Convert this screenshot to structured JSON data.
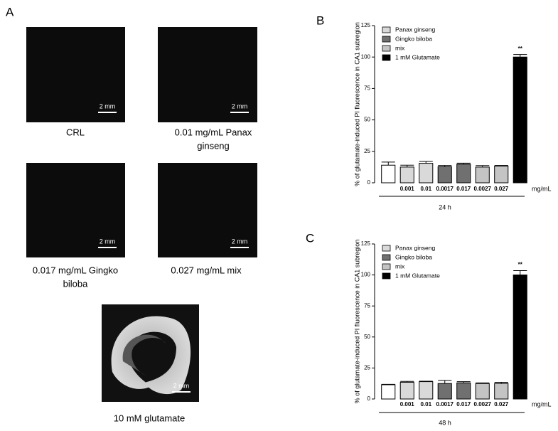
{
  "panel_a": {
    "letter": "A",
    "images": [
      {
        "caption": [
          "CRL"
        ],
        "scale": "2 mm"
      },
      {
        "caption": [
          "0.01 mg/mL Panax",
          "ginseng"
        ],
        "scale": "2 mm"
      },
      {
        "caption": [
          "0.017 mg/mL Gingko",
          "biloba"
        ],
        "scale": "2 mm"
      },
      {
        "caption": [
          "0.027 mg/mL mix"
        ],
        "scale": "2 mm"
      },
      {
        "caption": [
          "10 mM glutamate"
        ],
        "scale": "2 mm"
      }
    ]
  },
  "chart_data": [
    {
      "type": "bar",
      "letter": "B",
      "ylabel": "% of glutamate-induced PI fluorescence in CA1 subregion",
      "xlabel": "24 h",
      "unit": "mg/mL",
      "categories": [
        null,
        "0.001",
        "0.01",
        "0.0017",
        "0.017",
        "0.0027",
        "0.027",
        null
      ],
      "series": [
        {
          "color": "#ffffff",
          "values": [
            14,
            null,
            null,
            null,
            null,
            null,
            null,
            null
          ],
          "errors": [
            2.5,
            null,
            null,
            null,
            null,
            null,
            null,
            null
          ]
        },
        {
          "name": "Panax ginseng",
          "color": "#d9d9d9",
          "values": [
            null,
            12.5,
            15.5,
            null,
            null,
            null,
            null,
            null
          ],
          "errors": [
            null,
            1.5,
            1.5,
            null,
            null,
            null,
            null,
            null
          ]
        },
        {
          "name": "Gingko biloba",
          "color": "#707070",
          "values": [
            null,
            null,
            null,
            12.8,
            14.8,
            null,
            null,
            null
          ],
          "errors": [
            null,
            null,
            null,
            1,
            0.8,
            null,
            null,
            null
          ]
        },
        {
          "name": "mix",
          "color": "#c4c4c4",
          "values": [
            null,
            null,
            null,
            null,
            null,
            12.5,
            13.3,
            null
          ],
          "errors": [
            null,
            null,
            null,
            null,
            null,
            1.2,
            0.5,
            null
          ]
        },
        {
          "name": "1 mM Glutamate",
          "color": "#000000",
          "values": [
            null,
            null,
            null,
            null,
            null,
            null,
            null,
            100
          ],
          "errors": [
            null,
            null,
            null,
            null,
            null,
            null,
            null,
            2
          ]
        }
      ],
      "significance": [
        null,
        null,
        null,
        null,
        null,
        null,
        null,
        "**"
      ],
      "ylim": [
        0,
        125
      ],
      "yticks": [
        0,
        25,
        50,
        75,
        100,
        125
      ]
    },
    {
      "type": "bar",
      "letter": "C",
      "ylabel": "% of glutamate-induced PI fluorescence in CA1 subregion",
      "xlabel": "48 h",
      "unit": "mg/mL",
      "categories": [
        null,
        "0.001",
        "0.01",
        "0.0017",
        "0.017",
        "0.0027",
        "0.027",
        null
      ],
      "series": [
        {
          "color": "#ffffff",
          "values": [
            11.5,
            null,
            null,
            null,
            null,
            null,
            null,
            null
          ],
          "errors": [
            0.3,
            null,
            null,
            null,
            null,
            null,
            null,
            null
          ]
        },
        {
          "name": "Panax ginseng",
          "color": "#d9d9d9",
          "values": [
            null,
            13.5,
            14,
            null,
            null,
            null,
            null,
            null
          ],
          "errors": [
            null,
            0.7,
            0.3,
            null,
            null,
            null,
            null,
            null
          ]
        },
        {
          "name": "Gingko biloba",
          "color": "#707070",
          "values": [
            null,
            null,
            null,
            12.5,
            13,
            null,
            null,
            null
          ],
          "errors": [
            null,
            null,
            null,
            2.5,
            1,
            null,
            null,
            null
          ]
        },
        {
          "name": "mix",
          "color": "#c4c4c4",
          "values": [
            null,
            null,
            null,
            null,
            null,
            12.5,
            12.5,
            null
          ],
          "errors": [
            null,
            null,
            null,
            null,
            null,
            0.5,
            1,
            null
          ]
        },
        {
          "name": "1 mM Glutamate",
          "color": "#000000",
          "values": [
            null,
            null,
            null,
            null,
            null,
            null,
            null,
            100
          ],
          "errors": [
            null,
            null,
            null,
            null,
            null,
            null,
            null,
            3.5
          ]
        }
      ],
      "significance": [
        null,
        null,
        null,
        null,
        null,
        null,
        null,
        "**"
      ],
      "ylim": [
        0,
        125
      ],
      "yticks": [
        0,
        25,
        50,
        75,
        100,
        125
      ]
    }
  ]
}
